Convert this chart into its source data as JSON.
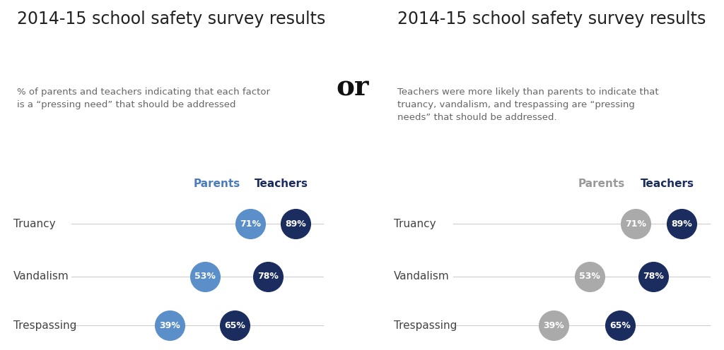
{
  "title": "2014-15 school safety survey results",
  "subtitle_left": "% of parents and teachers indicating that each factor\nis a “pressing need” that should be addressed",
  "subtitle_right": "Teachers were more likely than parents to indicate that\ntruancy, vandalism, and trespassing are “pressing\nneeds” that should be addressed.",
  "or_text": "or",
  "categories": [
    "Truancy",
    "Vandalism",
    "Trespassing"
  ],
  "parents_values": [
    71,
    53,
    39
  ],
  "teachers_values": [
    89,
    78,
    65
  ],
  "color_parents_left": "#5b8fc9",
  "color_teachers_left": "#1b2d5f",
  "color_parents_right": "#aaaaaa",
  "color_teachers_right": "#1b2d5f",
  "color_parents_label_left": "#4a7bbf",
  "color_teachers_label_left": "#1b2d5f",
  "color_parents_label_right": "#999999",
  "color_teachers_label_right": "#1b2d5f",
  "line_color": "#cccccc",
  "bg_color": "#ffffff",
  "title_fontsize": 17,
  "subtitle_fontsize": 9.5,
  "category_fontsize": 11,
  "legend_fontsize": 11,
  "dot_fontsize": 9,
  "or_fontsize": 28
}
